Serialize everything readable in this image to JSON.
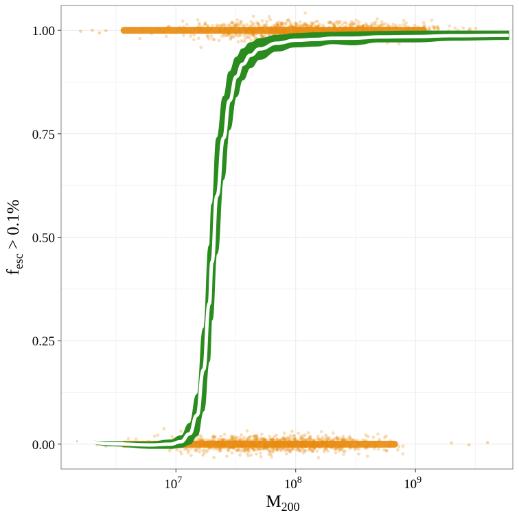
{
  "chart_data": {
    "type": "scatter",
    "title": "",
    "xlabel": "M",
    "xlabel_sub": "200",
    "ylabel": "f",
    "ylabel_sub": "esc",
    "ylabel_suffix": " > 0.1%",
    "x_scale": "log10",
    "xlim": [
      1100000.0,
      6500000000.0
    ],
    "ylim": [
      -0.06,
      1.06
    ],
    "grid": true,
    "x_ticks": [
      {
        "value": 10000000.0,
        "base": "10",
        "exp": "7"
      },
      {
        "value": 100000000.0,
        "base": "10",
        "exp": "8"
      },
      {
        "value": 1000000000.0,
        "base": "10",
        "exp": "9"
      }
    ],
    "y_ticks": [
      {
        "value": 0.0,
        "label": "0.00"
      },
      {
        "value": 0.25,
        "label": "0.25"
      },
      {
        "value": 0.5,
        "label": "0.50"
      },
      {
        "value": 0.75,
        "label": "0.75"
      },
      {
        "value": 1.0,
        "label": "1.00"
      }
    ],
    "colors": {
      "points": "#e8890c",
      "band": "#2a8c1e",
      "mean_line": "#ffffff",
      "grid": "#ebebeb",
      "panel_border": "#7f7f7f"
    },
    "series": [
      {
        "kind": "points",
        "description_group": "escaping",
        "y": 1.0,
        "x_range": [
          3000000.0,
          5000000000.0
        ],
        "outliers_x": [
          1600000.0,
          2000000.0,
          2300000.0,
          2600000.0
        ]
      },
      {
        "kind": "points",
        "description_group": "non-escaping",
        "y": 0.0,
        "x_range": [
          3000000.0,
          1300000000.0
        ],
        "outliers_x": [
          2200000.0,
          2600000.0,
          2000000000.0,
          2800000000.0,
          4000000000.0
        ]
      },
      {
        "kind": "band",
        "x": [
          1500000.0,
          3000000.0,
          6000000.0,
          9000000.0,
          11000000.0,
          13000000.0,
          15000000.0,
          17000000.0,
          19000000.0,
          20000000.0,
          22000000.0,
          25000000.0,
          28000000.0,
          32000000.0,
          36000000.0,
          42000000.0,
          50000000.0,
          70000000.0,
          100000000.0,
          150000000.0,
          200000000.0,
          300000000.0,
          500000000.0,
          1000000000.0,
          2000000000.0,
          6000000000.0
        ],
        "upper": [
          0.008,
          0.006,
          0.005,
          0.01,
          0.02,
          0.05,
          0.12,
          0.28,
          0.48,
          0.58,
          0.74,
          0.84,
          0.9,
          0.935,
          0.955,
          0.97,
          0.98,
          0.988,
          0.992,
          0.994,
          0.995,
          0.996,
          0.997,
          0.998,
          0.998,
          0.998
        ],
        "lower": [
          0.006,
          -0.004,
          -0.01,
          -0.01,
          -0.008,
          0.0,
          0.02,
          0.08,
          0.2,
          0.3,
          0.46,
          0.64,
          0.76,
          0.84,
          0.88,
          0.91,
          0.93,
          0.95,
          0.96,
          0.962,
          0.968,
          0.965,
          0.972,
          0.972,
          0.976,
          0.978
        ],
        "mean": [
          0.007,
          0.001,
          -0.002,
          0.0,
          0.006,
          0.025,
          0.07,
          0.18,
          0.34,
          0.44,
          0.6,
          0.74,
          0.83,
          0.888,
          0.918,
          0.94,
          0.955,
          0.969,
          0.976,
          0.978,
          0.981,
          0.981,
          0.984,
          0.985,
          0.987,
          0.988
        ]
      }
    ]
  }
}
